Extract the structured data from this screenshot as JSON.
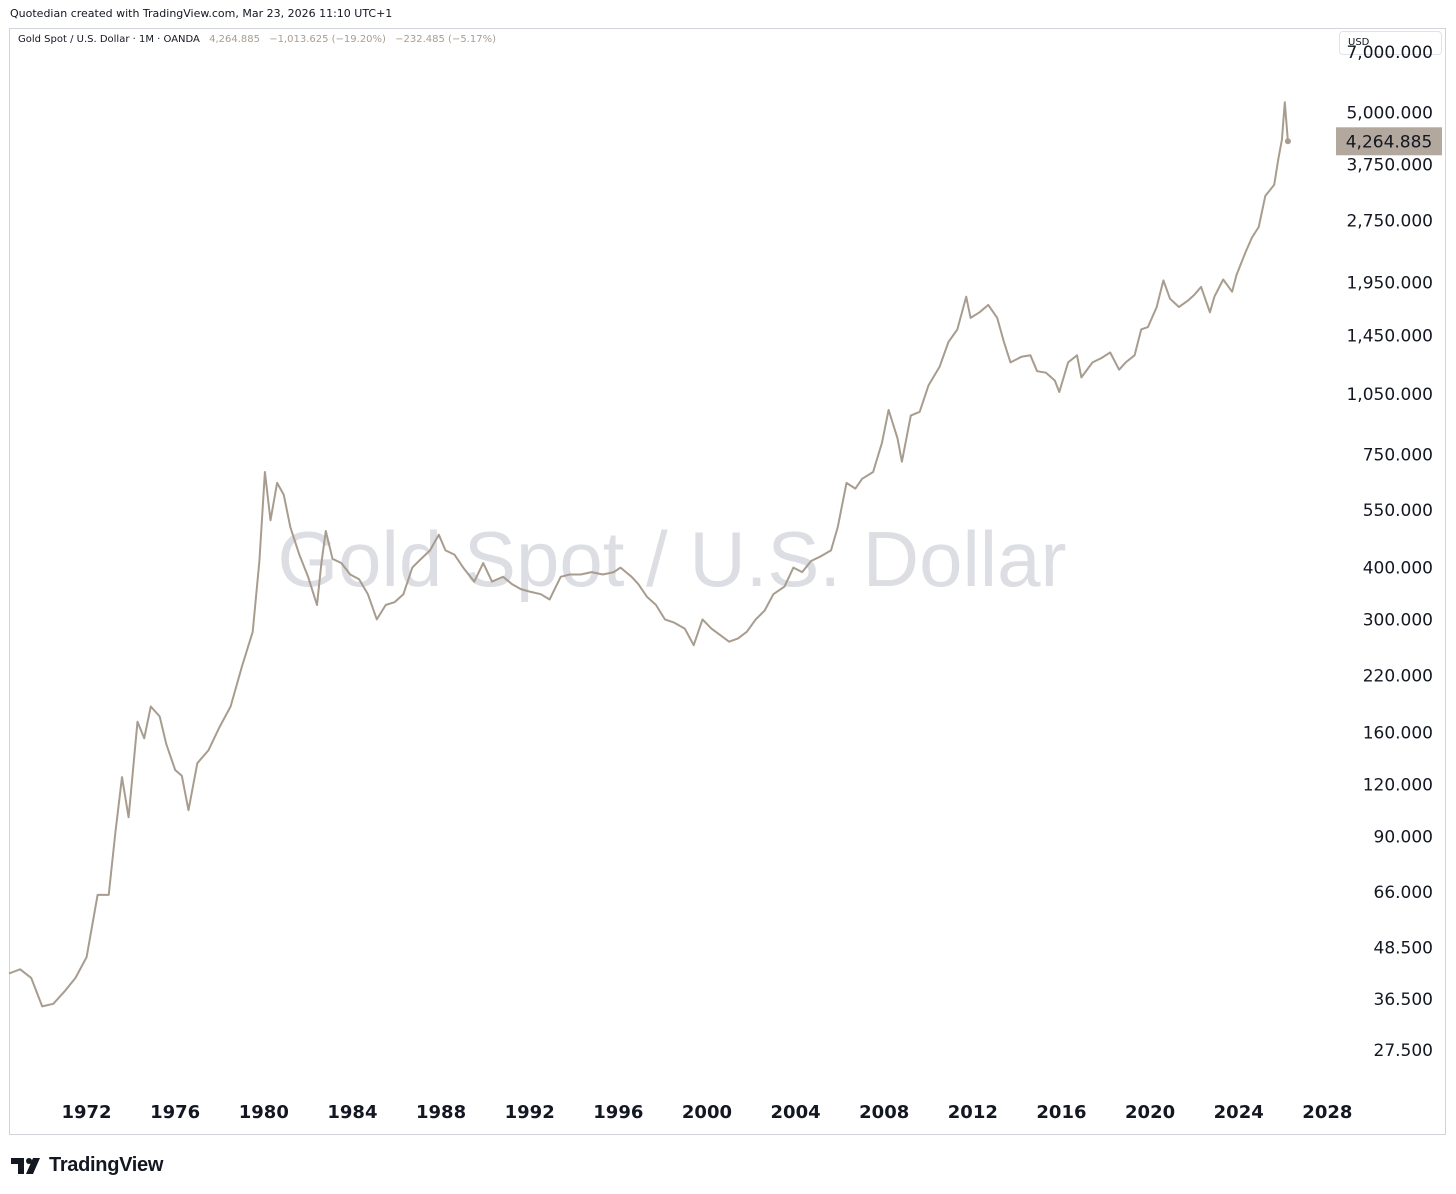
{
  "header": {
    "attribution": "Quotedian created with TradingView.com, Mar 23, 2026 11:10 UTC+1"
  },
  "legend": {
    "symbol": "Gold Spot / U.S. Dollar · 1M · OANDA",
    "last": "4,264.885",
    "change": "−1,013.625 (−19.20%)",
    "change2": "−232.485 (−5.17%)"
  },
  "currency_button": "USD",
  "watermark": "Gold Spot / U.S. Dollar",
  "price_label": "4,264.885",
  "brand": {
    "name": "TradingView"
  },
  "colors": {
    "line": "#a89c8f",
    "price_label_bg": "#b3a89d",
    "watermark": "#dcdee3",
    "frame": "#d1d4dc"
  },
  "chart_data": {
    "type": "line",
    "title": "Gold Spot / U.S. Dollar",
    "ylabel": "USD",
    "yscale": "log",
    "ylim": [
      22,
      8000
    ],
    "xlim": [
      1968.5,
      2028.3
    ],
    "yticks": [
      {
        "v": 7000,
        "label": "7,000.000"
      },
      {
        "v": 5000,
        "label": "5,000.000"
      },
      {
        "v": 3750,
        "label": "3,750.000"
      },
      {
        "v": 2750,
        "label": "2,750.000"
      },
      {
        "v": 1950,
        "label": "1,950.000"
      },
      {
        "v": 1450,
        "label": "1,450.000"
      },
      {
        "v": 1050,
        "label": "1,050.000"
      },
      {
        "v": 750,
        "label": "750.000"
      },
      {
        "v": 550,
        "label": "550.000"
      },
      {
        "v": 400,
        "label": "400.000"
      },
      {
        "v": 300,
        "label": "300.000"
      },
      {
        "v": 220,
        "label": "220.000"
      },
      {
        "v": 160,
        "label": "160.000"
      },
      {
        "v": 120,
        "label": "120.000"
      },
      {
        "v": 90,
        "label": "90.000"
      },
      {
        "v": 66,
        "label": "66.000"
      },
      {
        "v": 48.5,
        "label": "48.500"
      },
      {
        "v": 36.5,
        "label": "36.500"
      },
      {
        "v": 27.5,
        "label": "27.500"
      }
    ],
    "xticks": [
      "1972",
      "1976",
      "1980",
      "1984",
      "1988",
      "1992",
      "1996",
      "2000",
      "2004",
      "2008",
      "2012",
      "2016",
      "2020",
      "2024",
      "2028"
    ],
    "series": [
      {
        "values": [
          [
            1968.5,
            42
          ],
          [
            1969.0,
            43
          ],
          [
            1969.5,
            41
          ],
          [
            1970.0,
            35
          ],
          [
            1970.5,
            35.5
          ],
          [
            1971.0,
            38
          ],
          [
            1971.5,
            41
          ],
          [
            1972.0,
            46
          ],
          [
            1972.5,
            65
          ],
          [
            1973.0,
            65
          ],
          [
            1973.3,
            92
          ],
          [
            1973.6,
            125
          ],
          [
            1973.9,
            100
          ],
          [
            1974.3,
            170
          ],
          [
            1974.6,
            155
          ],
          [
            1974.9,
            185
          ],
          [
            1975.3,
            175
          ],
          [
            1975.6,
            150
          ],
          [
            1976.0,
            130
          ],
          [
            1976.3,
            126
          ],
          [
            1976.6,
            104
          ],
          [
            1977.0,
            135
          ],
          [
            1977.5,
            145
          ],
          [
            1978.0,
            165
          ],
          [
            1978.5,
            185
          ],
          [
            1979.0,
            230
          ],
          [
            1979.5,
            280
          ],
          [
            1979.8,
            415
          ],
          [
            1980.05,
            680
          ],
          [
            1980.3,
            520
          ],
          [
            1980.6,
            640
          ],
          [
            1980.9,
            600
          ],
          [
            1981.2,
            500
          ],
          [
            1981.6,
            430
          ],
          [
            1982.0,
            380
          ],
          [
            1982.4,
            325
          ],
          [
            1982.6,
            410
          ],
          [
            1982.8,
            490
          ],
          [
            1983.1,
            420
          ],
          [
            1983.5,
            410
          ],
          [
            1983.9,
            385
          ],
          [
            1984.3,
            375
          ],
          [
            1984.7,
            345
          ],
          [
            1985.1,
            300
          ],
          [
            1985.5,
            325
          ],
          [
            1985.9,
            330
          ],
          [
            1986.3,
            345
          ],
          [
            1986.7,
            400
          ],
          [
            1987.0,
            415
          ],
          [
            1987.5,
            440
          ],
          [
            1987.9,
            480
          ],
          [
            1988.2,
            440
          ],
          [
            1988.6,
            430
          ],
          [
            1989.0,
            400
          ],
          [
            1989.5,
            370
          ],
          [
            1989.9,
            410
          ],
          [
            1990.3,
            370
          ],
          [
            1990.8,
            380
          ],
          [
            1991.2,
            365
          ],
          [
            1991.6,
            355
          ],
          [
            1992.0,
            350
          ],
          [
            1992.5,
            345
          ],
          [
            1992.9,
            335
          ],
          [
            1993.4,
            380
          ],
          [
            1993.8,
            385
          ],
          [
            1994.3,
            385
          ],
          [
            1994.8,
            390
          ],
          [
            1995.3,
            385
          ],
          [
            1995.8,
            390
          ],
          [
            1996.1,
            400
          ],
          [
            1996.6,
            380
          ],
          [
            1996.9,
            365
          ],
          [
            1997.3,
            340
          ],
          [
            1997.7,
            325
          ],
          [
            1998.1,
            300
          ],
          [
            1998.5,
            295
          ],
          [
            1999.0,
            285
          ],
          [
            1999.4,
            260
          ],
          [
            1999.8,
            300
          ],
          [
            2000.2,
            285
          ],
          [
            2000.6,
            275
          ],
          [
            2001.0,
            265
          ],
          [
            2001.4,
            270
          ],
          [
            2001.8,
            280
          ],
          [
            2002.2,
            300
          ],
          [
            2002.6,
            315
          ],
          [
            2003.0,
            345
          ],
          [
            2003.5,
            360
          ],
          [
            2003.9,
            400
          ],
          [
            2004.3,
            390
          ],
          [
            2004.7,
            415
          ],
          [
            2005.1,
            425
          ],
          [
            2005.6,
            440
          ],
          [
            2005.9,
            500
          ],
          [
            2006.3,
            640
          ],
          [
            2006.7,
            620
          ],
          [
            2007.0,
            655
          ],
          [
            2007.5,
            680
          ],
          [
            2007.9,
            800
          ],
          [
            2008.2,
            960
          ],
          [
            2008.6,
            820
          ],
          [
            2008.8,
            720
          ],
          [
            2009.2,
            930
          ],
          [
            2009.6,
            950
          ],
          [
            2010.0,
            1100
          ],
          [
            2010.5,
            1220
          ],
          [
            2010.9,
            1400
          ],
          [
            2011.3,
            1500
          ],
          [
            2011.7,
            1800
          ],
          [
            2011.9,
            1600
          ],
          [
            2012.3,
            1650
          ],
          [
            2012.7,
            1720
          ],
          [
            2013.1,
            1600
          ],
          [
            2013.4,
            1400
          ],
          [
            2013.7,
            1250
          ],
          [
            2014.2,
            1290
          ],
          [
            2014.6,
            1300
          ],
          [
            2014.9,
            1190
          ],
          [
            2015.3,
            1180
          ],
          [
            2015.7,
            1130
          ],
          [
            2015.9,
            1060
          ],
          [
            2016.3,
            1250
          ],
          [
            2016.7,
            1300
          ],
          [
            2016.9,
            1150
          ],
          [
            2017.4,
            1250
          ],
          [
            2017.8,
            1280
          ],
          [
            2018.2,
            1320
          ],
          [
            2018.6,
            1200
          ],
          [
            2018.9,
            1250
          ],
          [
            2019.3,
            1300
          ],
          [
            2019.6,
            1500
          ],
          [
            2019.9,
            1520
          ],
          [
            2020.3,
            1700
          ],
          [
            2020.6,
            1970
          ],
          [
            2020.9,
            1780
          ],
          [
            2021.3,
            1700
          ],
          [
            2021.7,
            1760
          ],
          [
            2022.0,
            1820
          ],
          [
            2022.3,
            1900
          ],
          [
            2022.7,
            1650
          ],
          [
            2022.9,
            1800
          ],
          [
            2023.3,
            1980
          ],
          [
            2023.7,
            1850
          ],
          [
            2023.9,
            2030
          ],
          [
            2024.3,
            2300
          ],
          [
            2024.6,
            2500
          ],
          [
            2024.9,
            2650
          ],
          [
            2025.2,
            3150
          ],
          [
            2025.6,
            3350
          ],
          [
            2025.8,
            3900
          ],
          [
            2025.95,
            4300
          ],
          [
            2026.08,
            5300
          ],
          [
            2026.22,
            4264.885
          ]
        ]
      }
    ]
  }
}
